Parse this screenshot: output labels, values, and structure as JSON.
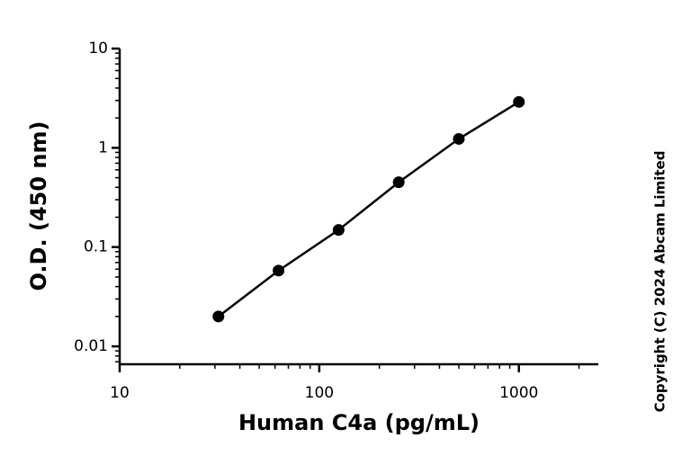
{
  "chart_data": {
    "type": "scatter",
    "x_label": "Human C4a (pg/mL)",
    "y_label": "O.D. (450 nm)",
    "annotation": "Copyright (C) 2024 Abcam Limited",
    "x": [
      31.25,
      62.5,
      125,
      250,
      500,
      1000
    ],
    "series": [
      {
        "values": [
          0.02,
          0.058,
          0.149,
          0.45,
          1.23,
          2.9
        ],
        "color": "#000000"
      }
    ],
    "xlim": [
      10,
      2500
    ],
    "ylim": [
      0.0066,
      10
    ],
    "xticks": [
      10,
      100,
      1000
    ],
    "yticks": [
      0.01,
      0.1,
      1,
      10
    ],
    "log_x": true,
    "log_y": true,
    "minor_ticks": true,
    "fit_line": true
  }
}
